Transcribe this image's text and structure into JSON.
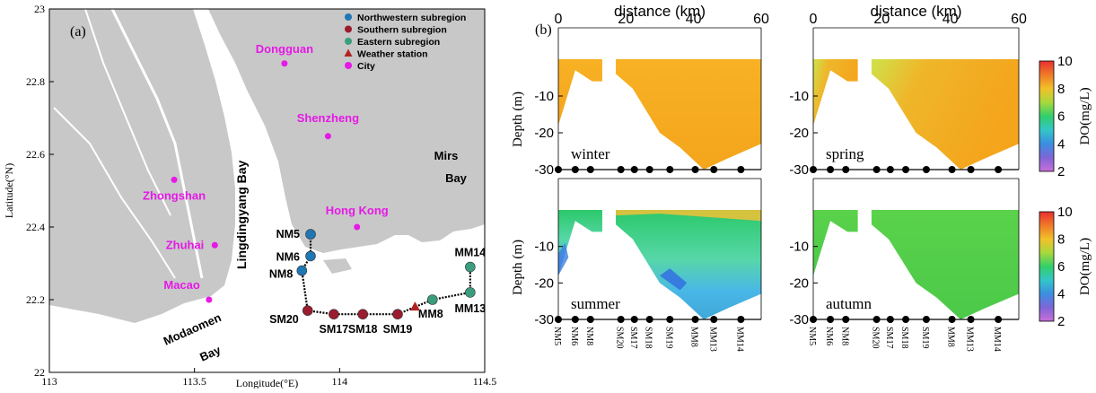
{
  "colors": {
    "land": "#c8c8c8",
    "water": "#ffffff",
    "northwestern": "#1f77b4",
    "southern": "#9b1c2e",
    "eastern": "#3a9e7e",
    "weather": "#b22222",
    "city": "#e619e6",
    "border": "#000000"
  },
  "chart_data": [
    {
      "type": "map",
      "panel_label": "(a)",
      "xlabel": "Longitude(°E)",
      "ylabel": "Latitude(°N)",
      "xlim": [
        113,
        114.5
      ],
      "ylim": [
        22,
        23
      ],
      "x_ticks": [
        "113",
        "113.5",
        "114",
        "114.5"
      ],
      "y_ticks": [
        "22",
        "22.2",
        "22.4",
        "22.6",
        "22.8",
        "23"
      ],
      "legend": [
        {
          "label": "Northwestern subregion",
          "kind": "northwestern"
        },
        {
          "label": "Southern subregion",
          "kind": "southern"
        },
        {
          "label": "Eastern subregion",
          "kind": "eastern"
        },
        {
          "label": "Weather station",
          "kind": "weather"
        },
        {
          "label": "City",
          "kind": "city"
        }
      ],
      "cities": [
        {
          "name": "Dongguan",
          "lon": 113.81,
          "lat": 22.85
        },
        {
          "name": "Shenzheng",
          "lon": 113.96,
          "lat": 22.65
        },
        {
          "name": "Zhongshan",
          "lon": 113.43,
          "lat": 22.53
        },
        {
          "name": "Hong Kong",
          "lon": 114.06,
          "lat": 22.4
        },
        {
          "name": "Zhuhai",
          "lon": 113.57,
          "lat": 22.35
        },
        {
          "name": "Macao",
          "lon": 113.55,
          "lat": 22.2
        }
      ],
      "stations": [
        {
          "name": "NM5",
          "lon": 113.9,
          "lat": 22.38,
          "group": "northwestern"
        },
        {
          "name": "NM6",
          "lon": 113.9,
          "lat": 22.32,
          "group": "northwestern"
        },
        {
          "name": "NM8",
          "lon": 113.87,
          "lat": 22.28,
          "group": "northwestern"
        },
        {
          "name": "SM20",
          "lon": 113.89,
          "lat": 22.17,
          "group": "southern"
        },
        {
          "name": "SM17",
          "lon": 113.98,
          "lat": 22.16,
          "group": "southern"
        },
        {
          "name": "SM18",
          "lon": 114.08,
          "lat": 22.16,
          "group": "southern"
        },
        {
          "name": "SM19",
          "lon": 114.2,
          "lat": 22.16,
          "group": "southern"
        },
        {
          "name": "MM8",
          "lon": 114.32,
          "lat": 22.2,
          "group": "eastern"
        },
        {
          "name": "MM13",
          "lon": 114.45,
          "lat": 22.22,
          "group": "eastern"
        },
        {
          "name": "MM14",
          "lon": 114.45,
          "lat": 22.29,
          "group": "eastern"
        }
      ],
      "weather_station": {
        "lon": 114.26,
        "lat": 22.18
      },
      "place_labels": [
        "Lingdingyang Bay",
        "Mirs",
        "Bay",
        "Modaomen",
        "Bay"
      ]
    },
    {
      "type": "heatmap",
      "panel_label": "(b)",
      "xlabel": "distance (km)",
      "ylabel": "Depth (m)",
      "colorbar_label": "DO(mg/L)",
      "xlim": [
        0,
        60
      ],
      "ylim": [
        -30,
        0
      ],
      "x_ticks": [
        "0",
        "20",
        "40",
        "60"
      ],
      "y_ticks": [
        "-10",
        "-20",
        "-30"
      ],
      "colorbar_ticks": [
        "2",
        "4",
        "6",
        "8",
        "10"
      ],
      "stations": [
        "NM5",
        "NM6",
        "NM8",
        "SM20",
        "SM17",
        "SM18",
        "SM19",
        "MM8",
        "MM13",
        "MM14"
      ],
      "station_distance_km": [
        0,
        5,
        9.5,
        18.5,
        22.5,
        27,
        33,
        40.5,
        46,
        54
      ],
      "panels": [
        {
          "season": "winter",
          "do_range": [
            7,
            7.5
          ]
        },
        {
          "season": "spring",
          "do_range": [
            6,
            7.5
          ]
        },
        {
          "season": "summer",
          "do_range": [
            3,
            8
          ]
        },
        {
          "season": "autumn",
          "do_range": [
            5.5,
            6
          ]
        }
      ]
    }
  ]
}
